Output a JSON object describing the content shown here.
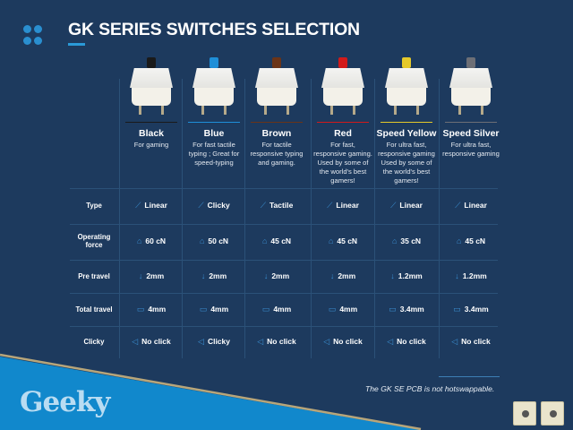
{
  "header": {
    "title": "GK SERIES SWITCHES SELECTION",
    "logo_icon": "four-dots-icon"
  },
  "switches": [
    {
      "name": "Black",
      "desc": "For gaming",
      "color": "#1a1a1a"
    },
    {
      "name": "Blue",
      "desc": "For fast tactile typing ; Great for speed-typing",
      "color": "#1e8fd8"
    },
    {
      "name": "Brown",
      "desc": "For tactile responsive typing and gaming.",
      "color": "#6b3418"
    },
    {
      "name": "Red",
      "desc": "For fast, responsive gaming. Used by some of the world's best gamers!",
      "color": "#d21a1a"
    },
    {
      "name": "Speed Yellow",
      "desc": "For ultra fast, responsive gaming Used by some of the world's best gamers!",
      "color": "#e5c92a"
    },
    {
      "name": "Speed Silver",
      "desc": "For ultra fast, responsive gaming",
      "color": "#6d6f76"
    }
  ],
  "rows": [
    {
      "label": "Type",
      "icon": "chart-icon",
      "values": [
        "Linear",
        "Clicky",
        "Tactile",
        "Linear",
        "Linear",
        "Linear"
      ]
    },
    {
      "label": "Operating force",
      "icon": "weight-icon",
      "values": [
        "60 cN",
        "50 cN",
        "45 cN",
        "45 cN",
        "35 cN",
        "45 cN"
      ]
    },
    {
      "label": "Pre travel",
      "icon": "arrow-down-icon",
      "values": [
        "2mm",
        "2mm",
        "2mm",
        "2mm",
        "1.2mm",
        "1.2mm"
      ]
    },
    {
      "label": "Total travel",
      "icon": "ruler-icon",
      "values": [
        "4mm",
        "4mm",
        "4mm",
        "4mm",
        "3.4mm",
        "3.4mm"
      ]
    },
    {
      "label": "Clicky",
      "icon": "speaker-icon",
      "values": [
        "No click",
        "Clicky",
        "No click",
        "No click",
        "No click",
        "No click"
      ]
    }
  ],
  "footer": {
    "brand": "Geeky",
    "note": "The GK SE PCB is not hotswappable.",
    "accent": "#1188cc"
  }
}
